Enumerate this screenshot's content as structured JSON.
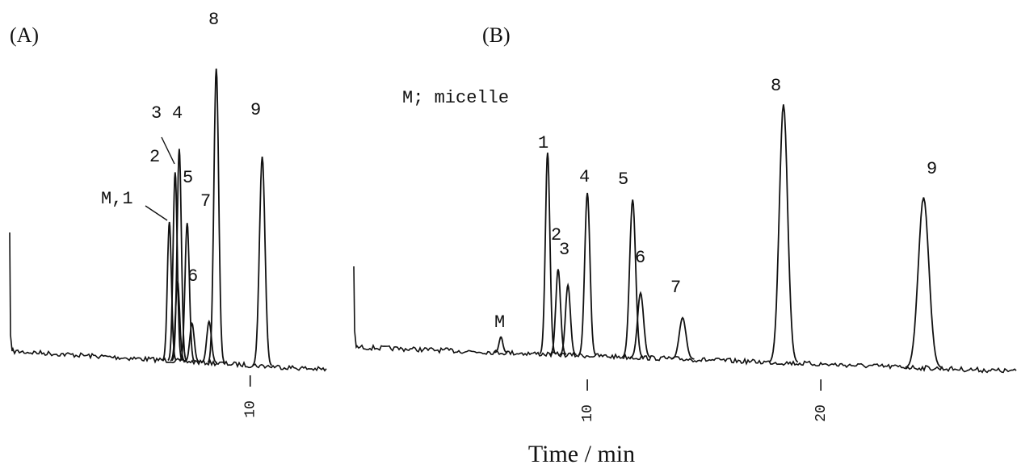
{
  "chart_data": [
    {
      "type": "chromatogram",
      "title": "(A)",
      "xlim": [
        0,
        13.2
      ],
      "xticks": [
        10
      ],
      "peaks": [
        {
          "label": "M,1",
          "time": 6.64,
          "height": 47
        },
        {
          "label": "2",
          "time": 6.88,
          "height": 64
        },
        {
          "label": "3",
          "time": 6.98,
          "height": 27
        },
        {
          "label": "4",
          "time": 7.05,
          "height": 72
        },
        {
          "label": "5",
          "time": 7.38,
          "height": 47
        },
        {
          "label": "6",
          "time": 7.58,
          "height": 13
        },
        {
          "label": "7",
          "time": 8.29,
          "height": 14
        },
        {
          "label": "8",
          "time": 8.59,
          "height": 100
        },
        {
          "label": "9",
          "time": 10.5,
          "height": 71
        }
      ]
    },
    {
      "type": "chromatogram",
      "title": "(B)",
      "annotation": "M; micelle",
      "xlim": [
        0,
        28.4
      ],
      "xticks": [
        10,
        20
      ],
      "peaks": [
        {
          "label": "M",
          "time": 6.3,
          "height": 6
        },
        {
          "label": "1",
          "time": 8.3,
          "height": 78
        },
        {
          "label": "2",
          "time": 8.75,
          "height": 33
        },
        {
          "label": "3",
          "time": 9.17,
          "height": 27
        },
        {
          "label": "4",
          "time": 10.0,
          "height": 63
        },
        {
          "label": "5",
          "time": 11.94,
          "height": 61
        },
        {
          "label": "6",
          "time": 12.28,
          "height": 25
        },
        {
          "label": "7",
          "time": 14.08,
          "height": 16
        },
        {
          "label": "8",
          "time": 18.4,
          "height": 100
        },
        {
          "label": "9",
          "time": 24.4,
          "height": 66
        }
      ]
    }
  ],
  "xlabel": "Time / min"
}
